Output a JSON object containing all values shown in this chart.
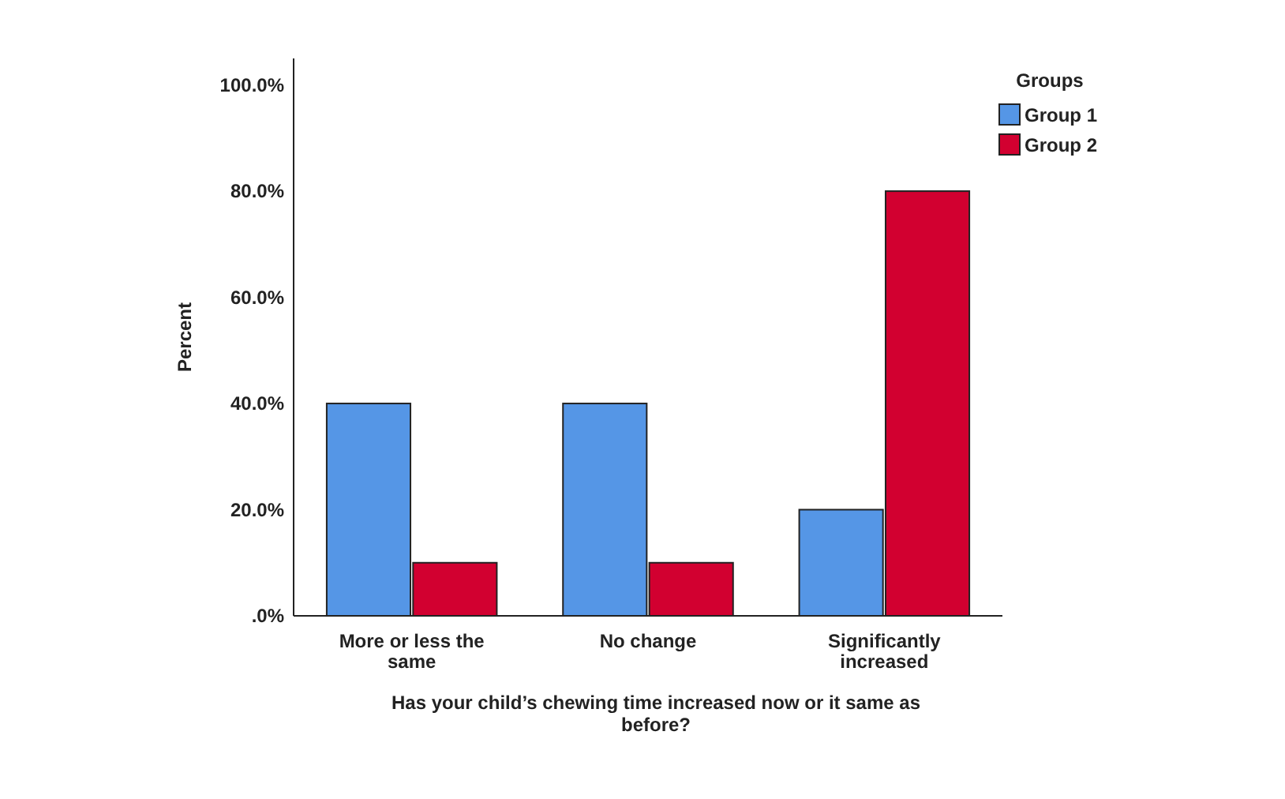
{
  "chart_data": {
    "type": "bar",
    "xlabel": "Has your child’s chewing time increased now or it same as before?",
    "ylabel": "Percent",
    "legend_title": "Groups",
    "legend": "top right",
    "categories": [
      "More or less the same",
      "No change",
      "Significantly increased"
    ],
    "series": [
      {
        "name": "Group 1",
        "color": "#5596e6",
        "values": [
          40,
          40,
          20
        ]
      },
      {
        "name": "Group 2",
        "color": "#d20030",
        "values": [
          10,
          10,
          80
        ]
      }
    ],
    "ylim": [
      0,
      105
    ],
    "yticks": [
      {
        "value": 0,
        "label": ".0%"
      },
      {
        "value": 20,
        "label": "20.0%"
      },
      {
        "value": 40,
        "label": "40.0%"
      },
      {
        "value": 60,
        "label": "60.0%"
      },
      {
        "value": 80,
        "label": "80.0%"
      },
      {
        "value": 100,
        "label": "100.0%"
      }
    ],
    "grid": false
  }
}
